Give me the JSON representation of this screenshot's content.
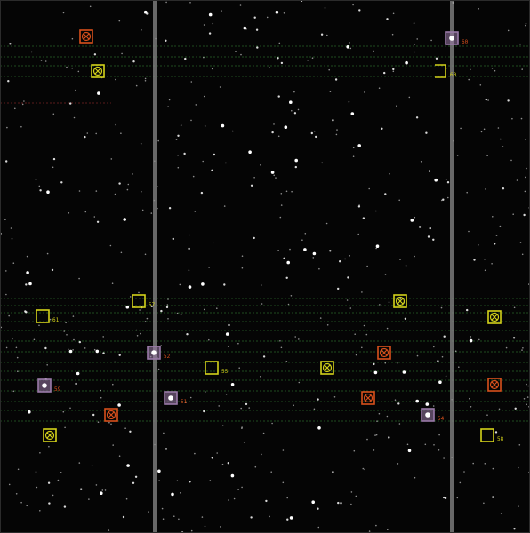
{
  "viewer": {
    "background": "#050505",
    "colors": {
      "yellow": "#d4d21a",
      "orange": "#d8501c",
      "purple": "#9a7aa8",
      "star": "#ffffff",
      "grid_line": "#8a8a8a",
      "scan_line": "#1e4a1e",
      "red_line": "#5a1a1a"
    }
  },
  "markers": [
    {
      "name": "marker-60-top-right",
      "style": "purple-star",
      "label": "60"
    },
    {
      "name": "marker-60-bracket",
      "style": "yellow-bracket",
      "label": "60"
    },
    {
      "name": "marker-61-left",
      "style": "yellow-square",
      "label": "61"
    },
    {
      "name": "marker-57",
      "style": "yellow-square",
      "label": "57"
    },
    {
      "name": "marker-52",
      "style": "purple-star",
      "label": "52"
    },
    {
      "name": "marker-55",
      "style": "yellow-square",
      "label": "55"
    },
    {
      "name": "marker-59-left",
      "style": "purple-star",
      "label": "59"
    },
    {
      "name": "marker-51",
      "style": "purple-star",
      "label": "51"
    },
    {
      "name": "marker-54",
      "style": "purple-star",
      "label": "54"
    },
    {
      "name": "marker-58-right",
      "style": "yellow-square",
      "label": "58"
    },
    {
      "name": "marker-x-orange-tl",
      "style": "orange-x",
      "label": ""
    },
    {
      "name": "marker-x-yellow-tl",
      "style": "yellow-x",
      "label": ""
    },
    {
      "name": "marker-x-yellow-c1",
      "style": "yellow-x",
      "label": ""
    },
    {
      "name": "marker-x-yellow-c2",
      "style": "yellow-x",
      "label": ""
    },
    {
      "name": "marker-x-orange-c1",
      "style": "orange-x",
      "label": ""
    },
    {
      "name": "marker-x-orange-c2",
      "style": "orange-x",
      "label": ""
    },
    {
      "name": "marker-x-yellow-r1",
      "style": "yellow-x",
      "label": ""
    },
    {
      "name": "marker-x-orange-r1",
      "style": "orange-x",
      "label": ""
    },
    {
      "name": "marker-x-orange-l1",
      "style": "orange-x",
      "label": ""
    },
    {
      "name": "marker-x-yellow-l1",
      "style": "yellow-x",
      "label": ""
    }
  ]
}
